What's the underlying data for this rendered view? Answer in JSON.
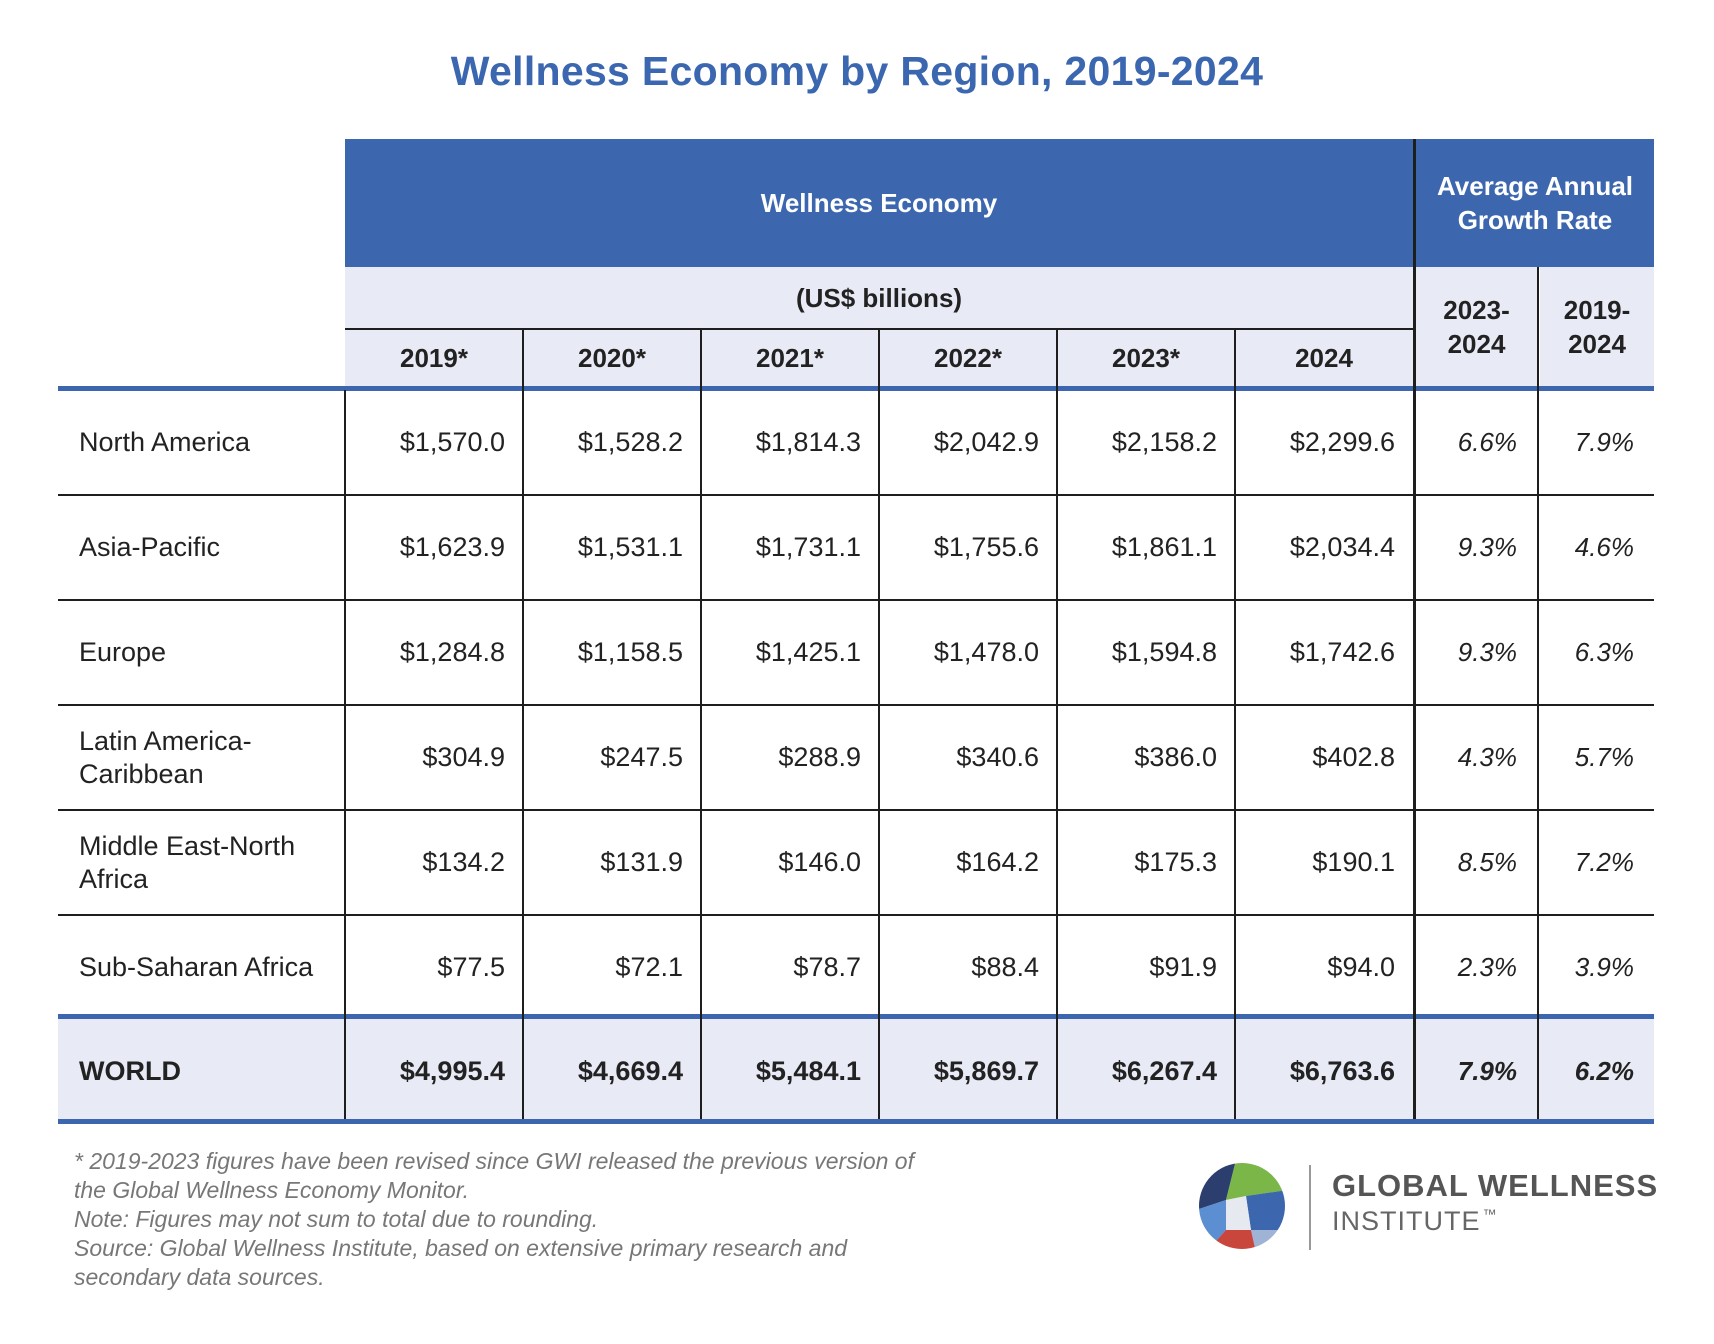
{
  "chart_data": {
    "type": "table",
    "title": "Wellness Economy by Region, 2019-2024",
    "group_headers": {
      "economy": "Wellness Economy",
      "units": "(US$ billions)",
      "growth": "Average Annual Growth Rate"
    },
    "columns": [
      "2019*",
      "2020*",
      "2021*",
      "2022*",
      "2023*",
      "2024"
    ],
    "growth_columns": [
      "2023-2024",
      "2019-2024"
    ],
    "rows": [
      {
        "region": "North America",
        "values": [
          "$1,570.0",
          "$1,528.2",
          "$1,814.3",
          "$2,042.9",
          "$2,158.2",
          "$2,299.6"
        ],
        "growth": [
          "6.6%",
          "7.9%"
        ]
      },
      {
        "region": "Asia-Pacific",
        "values": [
          "$1,623.9",
          "$1,531.1",
          "$1,731.1",
          "$1,755.6",
          "$1,861.1",
          "$2,034.4"
        ],
        "growth": [
          "9.3%",
          "4.6%"
        ]
      },
      {
        "region": "Europe",
        "values": [
          "$1,284.8",
          "$1,158.5",
          "$1,425.1",
          "$1,478.0",
          "$1,594.8",
          "$1,742.6"
        ],
        "growth": [
          "9.3%",
          "6.3%"
        ]
      },
      {
        "region": "Latin America-Caribbean",
        "values": [
          "$304.9",
          "$247.5",
          "$288.9",
          "$340.6",
          "$386.0",
          "$402.8"
        ],
        "growth": [
          "4.3%",
          "5.7%"
        ]
      },
      {
        "region": "Middle East-North Africa",
        "values": [
          "$134.2",
          "$131.9",
          "$146.0",
          "$164.2",
          "$175.3",
          "$190.1"
        ],
        "growth": [
          "8.5%",
          "7.2%"
        ]
      },
      {
        "region": "Sub-Saharan Africa",
        "values": [
          "$77.5",
          "$72.1",
          "$78.7",
          "$88.4",
          "$91.9",
          "$94.0"
        ],
        "growth": [
          "2.3%",
          "3.9%"
        ]
      }
    ],
    "total": {
      "region": "WORLD",
      "values": [
        "$4,995.4",
        "$4,669.4",
        "$5,484.1",
        "$5,869.7",
        "$6,267.4",
        "$6,763.6"
      ],
      "growth": [
        "7.9%",
        "6.2%"
      ]
    }
  },
  "footnotes": [
    "* 2019-2023 figures have been revised since GWI released the previous version of",
    "the Global Wellness Economy Monitor.",
    "Note: Figures may not sum to total due to rounding.",
    "Source: Global Wellness Institute, based on extensive primary research and",
    "secondary data sources."
  ],
  "logo": {
    "name": "GLOBAL WELLNESS",
    "sub": "INSTITUTE",
    "tm": "™",
    "icon": "globe-mosaic-icon",
    "colors": [
      "#3c67af",
      "#7ab648",
      "#c9463d",
      "#2c3e6e",
      "#5b8fd1"
    ]
  },
  "colors": {
    "header_blue": "#3c67af",
    "header_light": "#e8eaf5",
    "title": "#3b66b0"
  }
}
